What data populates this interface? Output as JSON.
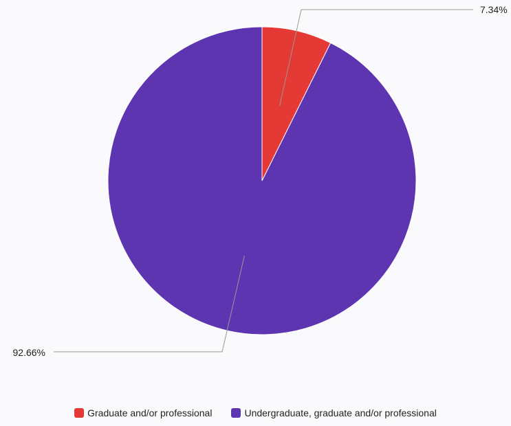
{
  "chart_data": {
    "type": "pie",
    "title": "",
    "series": [
      {
        "name": "Graduate and/or professional",
        "value": 7.34,
        "label": "7.34%",
        "color": "#e53935"
      },
      {
        "name": "Undergraduate, graduate and/or professional",
        "value": 92.66,
        "label": "92.66%",
        "color": "#5e35b1"
      }
    ],
    "start_angle": "12 o'clock",
    "direction": "clockwise",
    "legend": {
      "position": "bottom-center"
    },
    "label_line_color": "#999999"
  }
}
